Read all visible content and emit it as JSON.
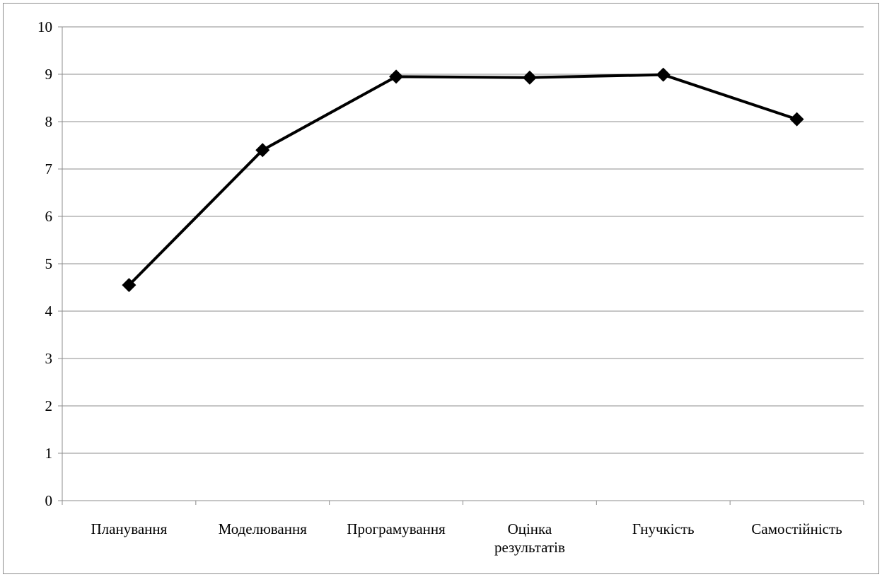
{
  "chart_data": {
    "type": "line",
    "title": "",
    "xlabel": "",
    "ylabel": "",
    "categories": [
      [
        "Планування"
      ],
      [
        "Моделювання"
      ],
      [
        "Програмування"
      ],
      [
        "Оцінка",
        "результатів"
      ],
      [
        "Гнучкість"
      ],
      [
        "Самостійність"
      ]
    ],
    "series": [
      {
        "values": [
          4.55,
          7.4,
          8.95,
          8.93,
          8.99,
          8.05
        ],
        "color": "#000000",
        "marker": "diamond"
      }
    ],
    "ylim": [
      0,
      10
    ],
    "y_ticks": [
      "0",
      "1",
      "2",
      "3",
      "4",
      "5",
      "6",
      "7",
      "8",
      "9",
      "10"
    ],
    "grid": true,
    "legend": "none"
  }
}
